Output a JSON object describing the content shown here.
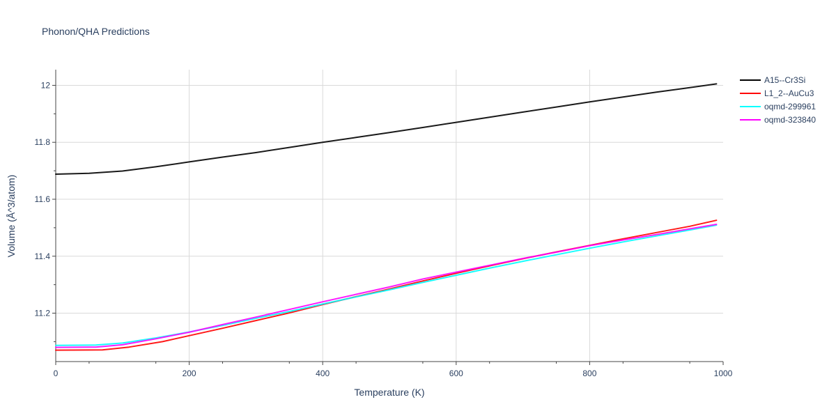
{
  "chart_data": {
    "type": "line",
    "title": "Phonon/QHA Predictions",
    "xlabel": "Temperature (K)",
    "ylabel": "Volume (Å^3/atom)",
    "xlim": [
      0,
      1000
    ],
    "ylim": [
      11.03,
      12.055
    ],
    "x_ticks": [
      0,
      200,
      400,
      600,
      800,
      1000
    ],
    "y_ticks": [
      11.2,
      11.4,
      11.6,
      11.8,
      12
    ],
    "x_tick_labels": [
      "0",
      "200",
      "400",
      "600",
      "800",
      "1000"
    ],
    "y_tick_labels": [
      "11.2",
      "11.4",
      "11.6",
      "11.8",
      "12"
    ],
    "grid": true,
    "legend_position": "top-right",
    "series": [
      {
        "name": "A15--Cr3Si",
        "color": "#000000",
        "x": [
          0,
          50,
          100,
          150,
          200,
          250,
          300,
          350,
          400,
          450,
          500,
          550,
          600,
          650,
          700,
          750,
          800,
          850,
          900,
          950,
          990
        ],
        "y": [
          11.688,
          11.691,
          11.699,
          11.714,
          11.731,
          11.748,
          11.764,
          11.782,
          11.8,
          11.817,
          11.834,
          11.852,
          11.87,
          11.888,
          11.906,
          11.924,
          11.942,
          11.959,
          11.976,
          11.992,
          12.005
        ]
      },
      {
        "name": "L1_2--AuCu3",
        "color": "#ff0000",
        "x": [
          0,
          70,
          110,
          160,
          200,
          250,
          300,
          350,
          400,
          450,
          500,
          550,
          600,
          650,
          700,
          750,
          800,
          850,
          900,
          950,
          990
        ],
        "y": [
          11.07,
          11.071,
          11.081,
          11.1,
          11.121,
          11.147,
          11.174,
          11.201,
          11.23,
          11.258,
          11.285,
          11.313,
          11.34,
          11.366,
          11.391,
          11.415,
          11.438,
          11.461,
          11.483,
          11.505,
          11.526
        ]
      },
      {
        "name": "oqmd-299961",
        "color": "#00ffff",
        "x": [
          0,
          60,
          100,
          150,
          200,
          250,
          300,
          350,
          400,
          450,
          500,
          550,
          600,
          650,
          700,
          750,
          800,
          850,
          900,
          950,
          990
        ],
        "y": [
          11.087,
          11.088,
          11.095,
          11.113,
          11.134,
          11.157,
          11.182,
          11.206,
          11.232,
          11.257,
          11.282,
          11.308,
          11.333,
          11.358,
          11.382,
          11.405,
          11.428,
          11.45,
          11.471,
          11.492,
          11.509
        ]
      },
      {
        "name": "oqmd-323840",
        "color": "#ff00ff",
        "x": [
          0,
          60,
          100,
          150,
          200,
          250,
          300,
          350,
          400,
          450,
          500,
          550,
          600,
          650,
          700,
          750,
          800,
          850,
          900,
          950,
          990
        ],
        "y": [
          11.08,
          11.081,
          11.089,
          11.11,
          11.133,
          11.16,
          11.186,
          11.213,
          11.24,
          11.266,
          11.292,
          11.32,
          11.344,
          11.368,
          11.392,
          11.414,
          11.437,
          11.457,
          11.476,
          11.496,
          11.512
        ]
      }
    ]
  }
}
